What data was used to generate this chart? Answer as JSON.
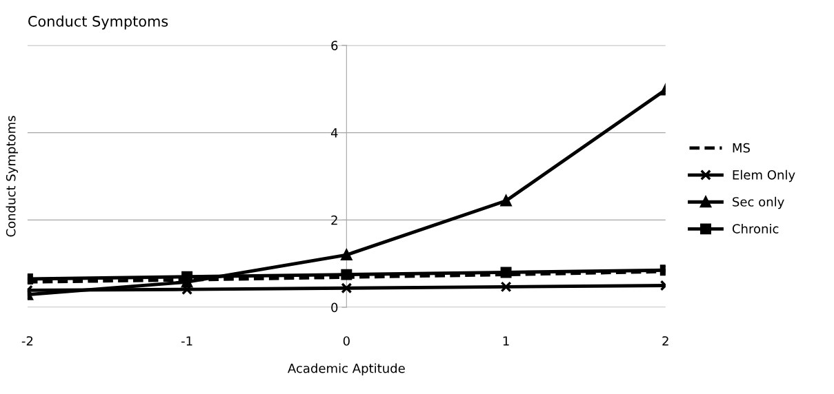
{
  "chart_data": {
    "type": "line",
    "title": "Conduct Symptoms",
    "xlabel": "Academic Aptitude",
    "ylabel": "Conduct Symptoms",
    "x": [
      -2,
      -1,
      0,
      1,
      2
    ],
    "xlim": [
      -2,
      2
    ],
    "xticks": [
      -2,
      -1,
      0,
      1,
      2
    ],
    "ylim": [
      0,
      6
    ],
    "yticks": [
      0,
      2,
      4,
      6
    ],
    "grid": "y",
    "legend": "right",
    "series": [
      {
        "name": "MS",
        "color": "#000000",
        "values": [
          0.58,
          0.63,
          0.69,
          0.75,
          0.82
        ],
        "line_style": "dashed",
        "marker": "none"
      },
      {
        "name": "Elem Only",
        "color": "#000000",
        "values": [
          0.39,
          0.41,
          0.44,
          0.47,
          0.5
        ],
        "line_style": "solid",
        "marker": "cross"
      },
      {
        "name": "Sec only",
        "color": "#000000",
        "values": [
          0.29,
          0.58,
          1.2,
          2.44,
          4.98
        ],
        "line_style": "solid",
        "marker": "triangle"
      },
      {
        "name": "Chronic",
        "color": "#000000",
        "values": [
          0.65,
          0.7,
          0.75,
          0.8,
          0.85
        ],
        "line_style": "solid",
        "marker": "square"
      }
    ]
  }
}
